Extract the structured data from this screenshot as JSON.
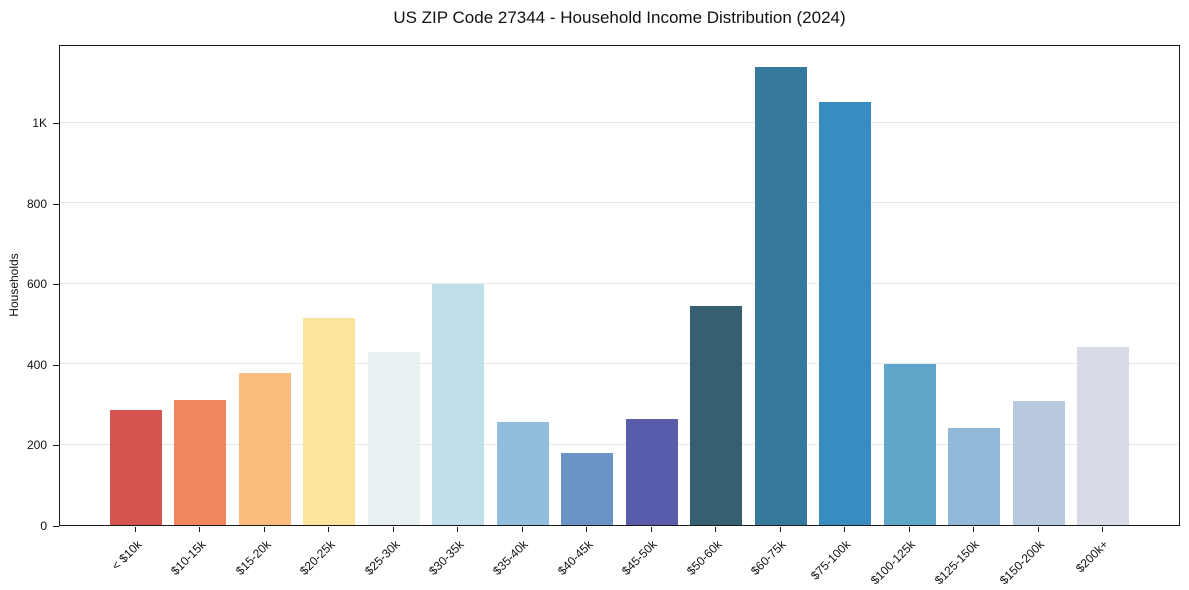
{
  "title": "US ZIP Code 27344 - Household Income Distribution (2024)",
  "chart_data": {
    "type": "bar",
    "title": "US ZIP Code 27344 - Household Income Distribution (2024)",
    "xlabel": "",
    "ylabel": "Households",
    "ylim": [
      0,
      1195
    ],
    "grid": "horizontal gridlines only",
    "legend_position": "none",
    "categories": [
      "< $10k",
      "$10-15k",
      "$15-20k",
      "$20-25k",
      "$25-30k",
      "$30-35k",
      "$35-40k",
      "$40-45k",
      "$45-50k",
      "$50-60k",
      "$60-75k",
      "$75-100k",
      "$100-125k",
      "$125-150k",
      "$150-200k",
      "$200k+"
    ],
    "values": [
      285,
      310,
      378,
      514,
      430,
      598,
      257,
      178,
      264,
      544,
      1138,
      1050,
      401,
      242,
      307,
      443
    ],
    "bar_colors": [
      "#d6544f",
      "#f0875f",
      "#fbbc7d",
      "#fde49c",
      "#e7f1f2",
      "#c0dfea",
      "#92bddd",
      "#6b93c6",
      "#5a5dac",
      "#36606f",
      "#35799e",
      "#378dbf",
      "#5ea6ca",
      "#93b9d8",
      "#b9c9de",
      "#d8dae6"
    ],
    "yticks": [
      {
        "value": 0,
        "label": "0"
      },
      {
        "value": 200,
        "label": "200"
      },
      {
        "value": 400,
        "label": "400"
      },
      {
        "value": 600,
        "label": "600"
      },
      {
        "value": 800,
        "label": "800"
      },
      {
        "value": 1000,
        "label": "1K"
      }
    ],
    "colors": {
      "gridline": "#e7e7e7",
      "axis": "#1a1a1a",
      "text": "#111111",
      "background": "#ffffff"
    }
  }
}
